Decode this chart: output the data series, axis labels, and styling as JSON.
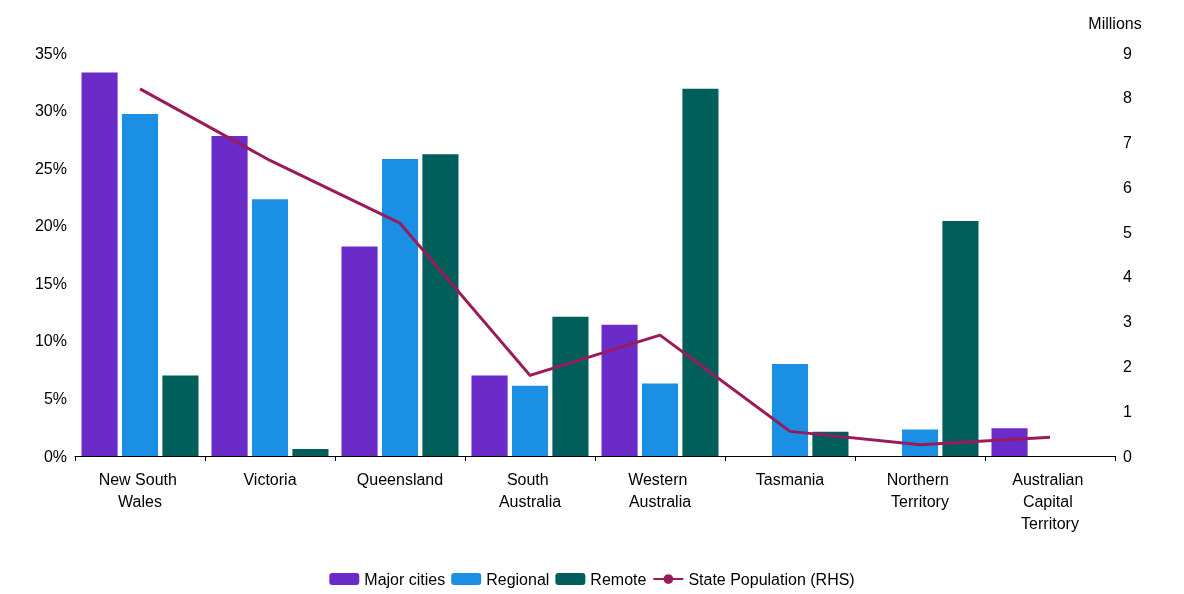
{
  "chart_data": {
    "type": "bar",
    "categories": [
      "New South Wales",
      "Victoria",
      "Queensland",
      "South Australia",
      "Western Australia",
      "Tasmania",
      "Northern Territory",
      "Australian Capital Territory"
    ],
    "series": [
      {
        "name": "Major cities",
        "color": "#6a2bc9",
        "values": [
          33.3,
          27.8,
          18.2,
          7.0,
          11.4,
          null,
          null,
          2.4
        ]
      },
      {
        "name": "Regional",
        "color": "#1a8fe3",
        "values": [
          29.7,
          22.3,
          25.8,
          6.1,
          6.3,
          8.0,
          2.3,
          null
        ]
      },
      {
        "name": "Remote",
        "color": "#005f5a",
        "values": [
          7.0,
          0.6,
          26.2,
          12.1,
          31.9,
          2.1,
          20.4,
          null
        ]
      },
      {
        "name": "State Population (RHS)",
        "type": "line",
        "axis": "y2",
        "color": "#9b1b5a",
        "values": [
          8.2,
          6.6,
          5.2,
          1.8,
          2.7,
          0.55,
          0.25,
          0.42
        ]
      }
    ],
    "y2label": "Millions",
    "ylim": [
      0,
      35
    ],
    "yticks": [
      {
        "value": 0,
        "label": "0%"
      },
      {
        "value": 5,
        "label": "5%"
      },
      {
        "value": 10,
        "label": "10%"
      },
      {
        "value": 15,
        "label": "15%"
      },
      {
        "value": 20,
        "label": "20%"
      },
      {
        "value": 25,
        "label": "25%"
      },
      {
        "value": 30,
        "label": "30%"
      },
      {
        "value": 35,
        "label": "35%"
      }
    ],
    "y2lim": [
      0,
      9
    ],
    "y2ticks": [
      0,
      1,
      2,
      3,
      4,
      5,
      6,
      7,
      8,
      9
    ],
    "legend": "bottom",
    "grid": false,
    "marker": "none"
  }
}
